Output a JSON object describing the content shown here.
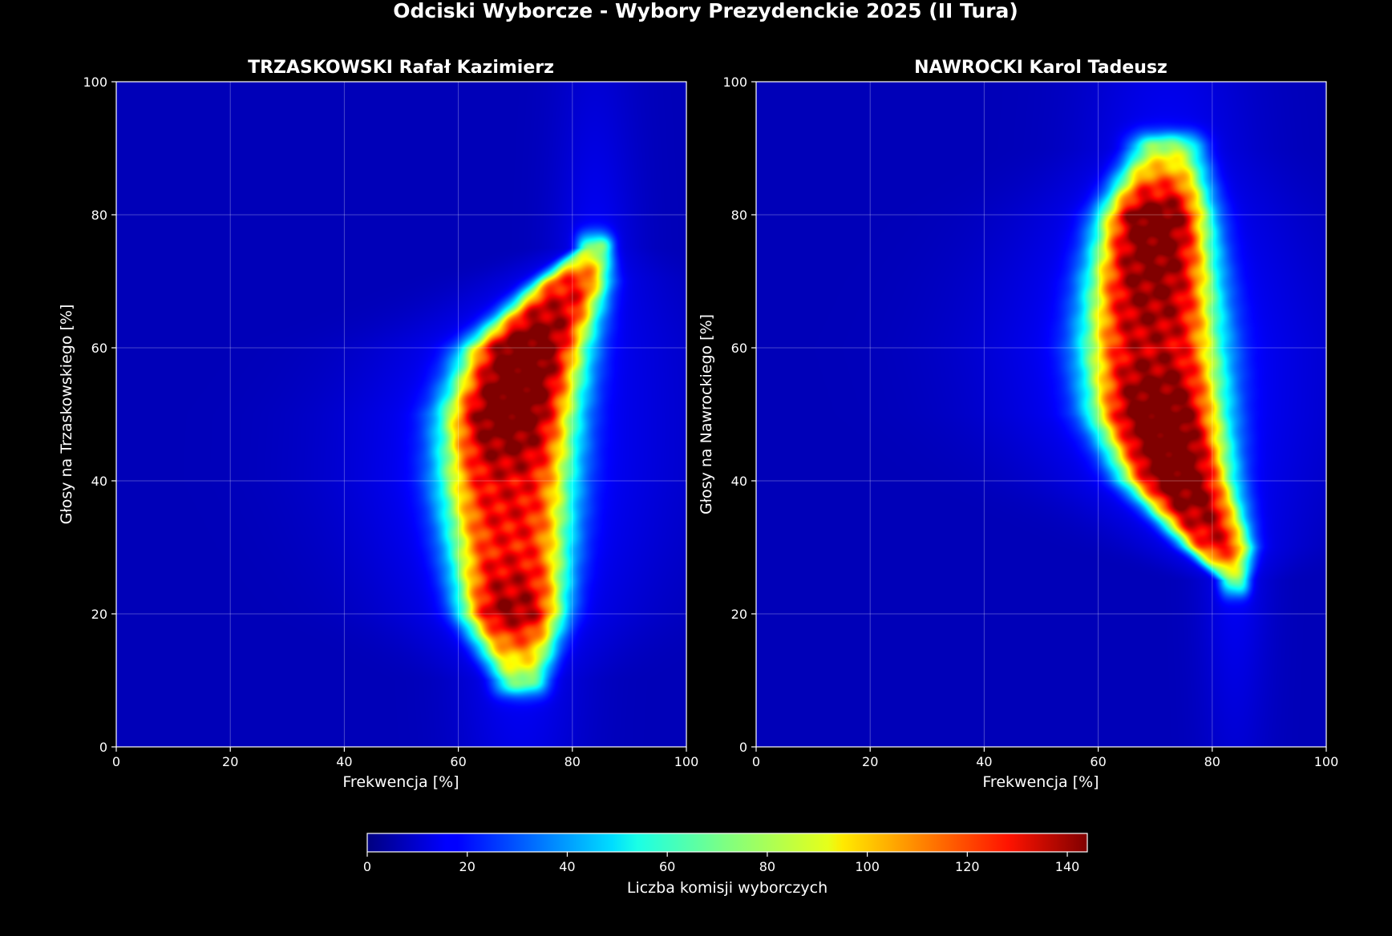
{
  "figure": {
    "title": "Odciski Wyborcze - Wybory Prezydenckie 2025 (II Tura)",
    "background": "#000000"
  },
  "chart_data": [
    {
      "type": "heatmap",
      "title": "TRZASKOWSKI Rafał Kazimierz",
      "xlabel": "Frekwencja [%]",
      "ylabel": "Głosy na Trzaskowskiego [%]",
      "xlim": [
        0,
        100
      ],
      "ylim": [
        0,
        100
      ],
      "xticks": [
        0,
        20,
        40,
        60,
        80,
        100
      ],
      "yticks": [
        0,
        20,
        40,
        60,
        80,
        100
      ],
      "grid": true,
      "colormap": "jet",
      "density_ridge": {
        "y": [
          10,
          20,
          30,
          40,
          50,
          60,
          70,
          75
        ],
        "x_center": [
          71,
          69.5,
          69,
          68.5,
          69,
          72,
          80,
          84
        ],
        "half_width": [
          4.5,
          8.5,
          10,
          11,
          11,
          10,
          6,
          3
        ],
        "peak_count": [
          60,
          130,
          110,
          115,
          140,
          140,
          110,
          60
        ]
      }
    },
    {
      "type": "heatmap",
      "title": "NAWROCKI Karol Tadeusz",
      "xlabel": "Frekwencja [%]",
      "ylabel": "Głosy na Nawrockiego [%]",
      "xlim": [
        0,
        100
      ],
      "ylim": [
        0,
        100
      ],
      "xticks": [
        0,
        20,
        40,
        60,
        80,
        100
      ],
      "yticks": [
        0,
        20,
        40,
        60,
        80,
        100
      ],
      "grid": true,
      "colormap": "jet",
      "density_ridge": {
        "y": [
          25,
          30,
          40,
          50,
          60,
          70,
          80,
          90
        ],
        "x_center": [
          84,
          81,
          74,
          70.5,
          69.5,
          69.5,
          70,
          72
        ],
        "half_width": [
          2.5,
          5.5,
          9,
          11,
          11.5,
          10.5,
          9,
          6
        ],
        "peak_count": [
          55,
          115,
          140,
          140,
          120,
          130,
          140,
          65
        ]
      }
    }
  ],
  "colorbar": {
    "label": "Liczba komisji wyborczych",
    "min": 0,
    "max": 144,
    "ticks": [
      0,
      20,
      40,
      60,
      80,
      100,
      120,
      140
    ],
    "colormap": "jet"
  }
}
